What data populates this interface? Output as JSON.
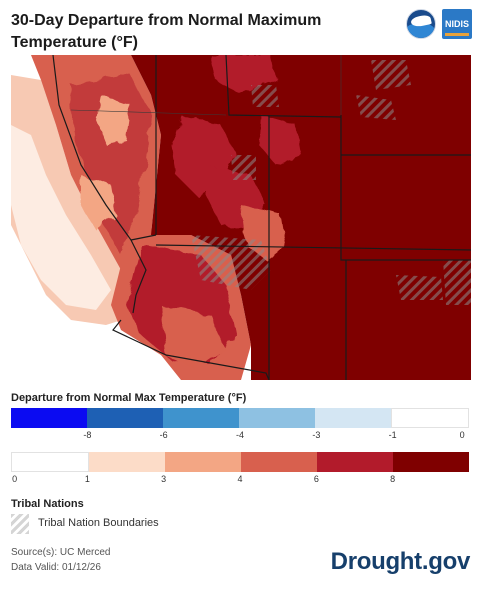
{
  "header": {
    "title": "30-Day Departure from Normal Maximum Temperature (°F)",
    "noaa_logo_text": "NOAA",
    "nidis_logo_text": "NIDIS"
  },
  "legend": {
    "title": "Departure from Normal Max Temperature (°F)",
    "cool_colors": [
      "#0b0bf2",
      "#1e60b4",
      "#3f93cd",
      "#8ec1e2",
      "#d4e6f3",
      "#ffffff"
    ],
    "cool_ticks": [
      "-8",
      "-6",
      "-4",
      "-3",
      "-1",
      "0"
    ],
    "warm_colors": [
      "#ffffff",
      "#fcdcc8",
      "#f3a684",
      "#d8604e",
      "#b21b2b",
      "#7f0000"
    ],
    "warm_ticks": [
      "0",
      "1",
      "3",
      "4",
      "6",
      "8"
    ]
  },
  "tribal": {
    "title": "Tribal Nations",
    "label": "Tribal Nation Boundaries"
  },
  "footer": {
    "source": "Source(s): UC Merced",
    "valid": "Data Valid: 01/12/26",
    "brand": "Drought.gov"
  }
}
